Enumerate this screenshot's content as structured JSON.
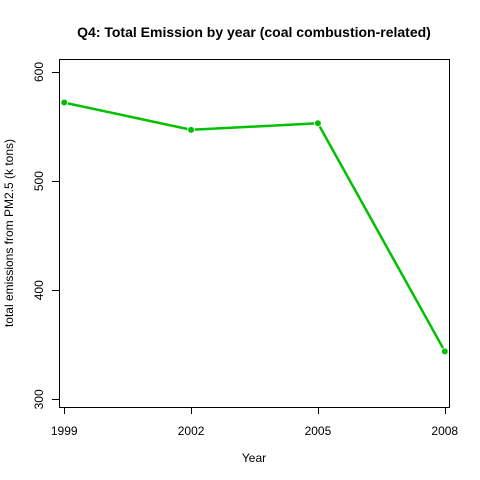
{
  "chart_data": {
    "type": "line",
    "title": "Q4: Total Emission by year (coal combustion-related)",
    "xlabel": "Year",
    "ylabel": "total emissions from PM2.5 (k tons)",
    "x": [
      1999,
      2002,
      2005,
      2008
    ],
    "series": [
      {
        "values": [
          572,
          547,
          553,
          344
        ],
        "color": "#00c000"
      }
    ],
    "xlim": [
      1998.9,
      2008.1
    ],
    "ylim": [
      293,
      611
    ],
    "xticks": [
      1999,
      2002,
      2005,
      2008
    ],
    "xtick_labels": [
      "1999",
      "2002",
      "2005",
      "2008"
    ],
    "yticks": [
      300,
      400,
      500,
      600
    ],
    "ytick_labels": [
      "300",
      "400",
      "500",
      "600"
    ],
    "grid": false,
    "markers": "filled-circle"
  }
}
